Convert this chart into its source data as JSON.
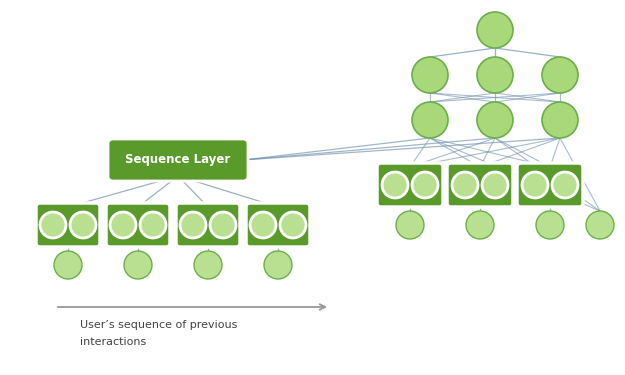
{
  "bg_color": "#ffffff",
  "node_fill": "#a8d87a",
  "node_edge": "#6ab04a",
  "node_fill_light": "#b8e090",
  "box_fill": "#5a9a2a",
  "box_edge_color": "white",
  "inner_fill": "#b8e090",
  "line_color": "#7090b0",
  "text_color": "#444444",
  "arrow_color": "#999999",
  "seq_box_fill": "#5a9a2a",
  "seq_text": "Sequence Layer",
  "bottom_text_line1": "User’s sequence of previous",
  "bottom_text_line2": "interactions"
}
